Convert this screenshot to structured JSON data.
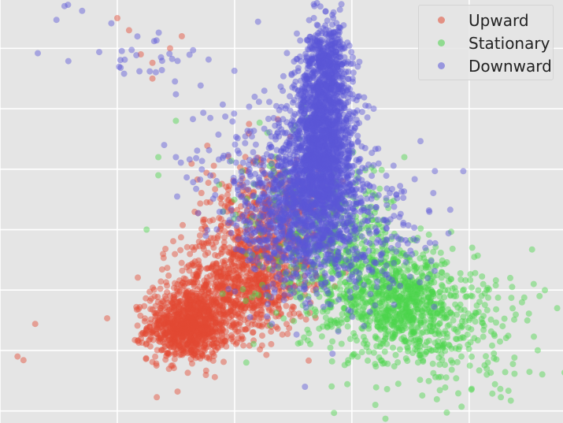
{
  "chart_data": {
    "type": "scatter",
    "title": "",
    "xlabel": "",
    "ylabel": "",
    "grid": true,
    "legend_position": "top-right",
    "xlim": [
      -1.0,
      3.8
    ],
    "ylim": [
      -1.6,
      1.9
    ],
    "series": [
      {
        "name": "Upward",
        "color": "#e24a33",
        "clusters": [
          {
            "cx": 0.6,
            "cy": -0.8,
            "sx": 0.17,
            "sy": 0.14,
            "n": 900
          },
          {
            "cx": 1.05,
            "cy": -0.45,
            "sx": 0.28,
            "sy": 0.22,
            "n": 800
          },
          {
            "cx": 1.35,
            "cy": 0.05,
            "sx": 0.2,
            "sy": 0.3,
            "n": 350
          },
          {
            "cx": 0.9,
            "cy": 0.1,
            "sx": 0.3,
            "sy": 0.25,
            "n": 80
          }
        ],
        "outliers": [
          [
            -0.85,
            -1.05
          ],
          [
            -0.8,
            -1.08
          ],
          [
            -0.7,
            -0.78
          ],
          [
            0.2,
            1.45
          ],
          [
            0.3,
            1.38
          ],
          [
            0.55,
            1.6
          ],
          [
            0.45,
            1.5
          ],
          [
            0.1,
            1.65
          ],
          [
            0.0,
            1.75
          ],
          [
            0.3,
            1.25
          ]
        ]
      },
      {
        "name": "Stationary",
        "color": "#4bd44b",
        "clusters": [
          {
            "cx": 2.45,
            "cy": -0.6,
            "sx": 0.3,
            "sy": 0.2,
            "n": 700
          },
          {
            "cx": 1.9,
            "cy": -0.25,
            "sx": 0.3,
            "sy": 0.3,
            "n": 500
          },
          {
            "cx": 2.8,
            "cy": -0.9,
            "sx": 0.4,
            "sy": 0.25,
            "n": 220
          },
          {
            "cx": 1.6,
            "cy": 0.3,
            "sx": 0.3,
            "sy": 0.3,
            "n": 80
          }
        ],
        "outliers": [
          [
            3.75,
            -0.65
          ],
          [
            3.6,
            -0.55
          ],
          [
            3.55,
            -0.45
          ],
          [
            3.35,
            -0.4
          ],
          [
            3.15,
            -1.15
          ],
          [
            3.15,
            -1.2
          ],
          [
            2.2,
            -1.45
          ],
          [
            2.3,
            -1.32
          ],
          [
            0.35,
            0.45
          ],
          [
            0.25,
            0.0
          ],
          [
            0.35,
            0.6
          ],
          [
            1.1,
            -1.1
          ],
          [
            0.5,
            0.9
          ],
          [
            3.0,
            -0.75
          ]
        ]
      },
      {
        "name": "Downward",
        "color": "#5a56d8",
        "clusters": [
          {
            "cx": 1.75,
            "cy": 0.9,
            "sx": 0.12,
            "sy": 0.35,
            "n": 1100
          },
          {
            "cx": 1.72,
            "cy": 0.45,
            "sx": 0.17,
            "sy": 0.3,
            "n": 900
          },
          {
            "cx": 1.5,
            "cy": 0.05,
            "sx": 0.25,
            "sy": 0.3,
            "n": 700
          },
          {
            "cx": 1.8,
            "cy": 1.4,
            "sx": 0.08,
            "sy": 0.15,
            "n": 250
          },
          {
            "cx": 2.1,
            "cy": -0.1,
            "sx": 0.3,
            "sy": 0.3,
            "n": 250
          },
          {
            "cx": 1.2,
            "cy": 0.6,
            "sx": 0.3,
            "sy": 0.3,
            "n": 120
          },
          {
            "cx": 0.3,
            "cy": 1.45,
            "sx": 0.3,
            "sy": 0.15,
            "n": 30
          }
        ],
        "outliers": [
          [
            -0.45,
            1.85
          ],
          [
            -0.42,
            1.86
          ],
          [
            -0.3,
            1.81
          ],
          [
            0.38,
            1.32
          ],
          [
            0.5,
            1.12
          ],
          [
            1.2,
            1.72
          ],
          [
            1.6,
            -1.3
          ],
          [
            2.05,
            1.1
          ],
          [
            0.5,
            0.6
          ],
          [
            0.4,
            0.7
          ]
        ]
      }
    ]
  }
}
